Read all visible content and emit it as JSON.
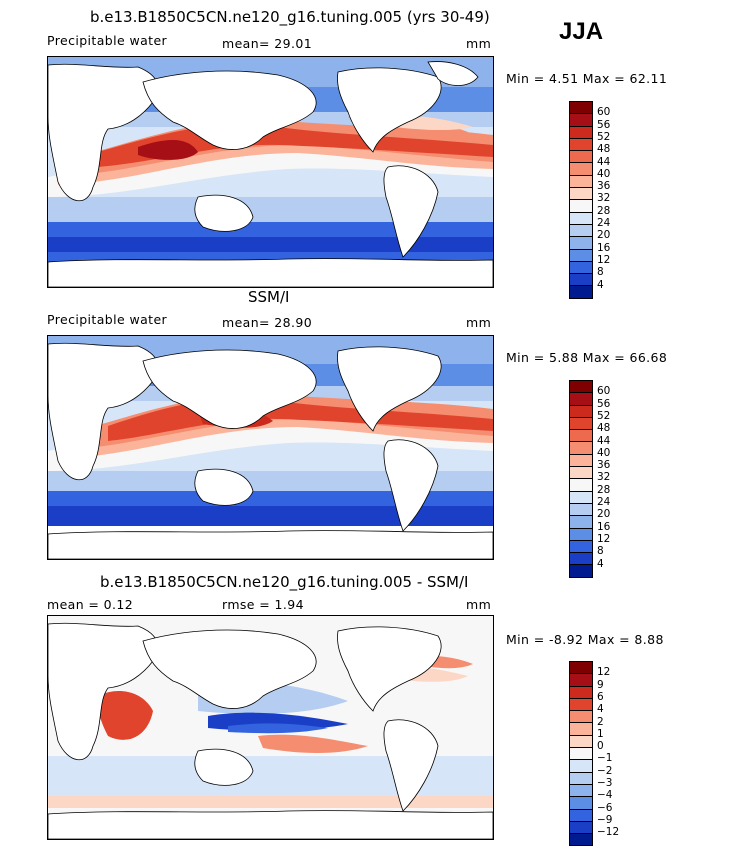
{
  "season": "JJA",
  "panels": [
    {
      "id": "model",
      "title": "b.e13.B1850C5CN.ne120_g16.tuning.005 (yrs 30-49)",
      "left_label": "Precipitable water",
      "center_label": "mean=  29.01",
      "units": "mm",
      "minmax": "Min =    4.51 Max =   62.11",
      "colorbar_labels": [
        "60",
        "56",
        "52",
        "48",
        "44",
        "40",
        "36",
        "32",
        "28",
        "24",
        "20",
        "16",
        "12",
        "8",
        "4"
      ]
    },
    {
      "id": "obs",
      "title": "SSM/I",
      "left_label": "Precipitable water",
      "center_label": "mean=  28.90",
      "units": "mm",
      "minmax": "Min =    5.88 Max =   66.68",
      "colorbar_labels": [
        "60",
        "56",
        "52",
        "48",
        "44",
        "40",
        "36",
        "32",
        "28",
        "24",
        "20",
        "16",
        "12",
        "8",
        "4"
      ]
    },
    {
      "id": "diff",
      "title": "b.e13.B1850C5CN.ne120_g16.tuning.005 - SSM/I",
      "left_label": "mean =    0.12",
      "center_label": "rmse =    1.94",
      "units": "mm",
      "minmax": "Min =  -8.92 Max =    8.88",
      "colorbar_labels": [
        "12",
        "9",
        "6",
        "4",
        "2",
        "1",
        "0",
        "−1",
        "−2",
        "−3",
        "−4",
        "−6",
        "−9",
        "−12"
      ]
    }
  ],
  "colors": {
    "abs_scale": [
      "#7f0000",
      "#a50f15",
      "#cb2a1c",
      "#e0442c",
      "#ee6a4f",
      "#f58d70",
      "#fbb49a",
      "#fdd7c6",
      "#f7f7f7",
      "#d6e5f7",
      "#b4cdf0",
      "#8db2ec",
      "#5d8ee6",
      "#3363de",
      "#1a3fc6",
      "#001a90"
    ],
    "diff_scale": [
      "#7f0000",
      "#a50f15",
      "#cb2a1c",
      "#e0442c",
      "#f58d70",
      "#fbb49a",
      "#fdd7c6",
      "#f7f7f7",
      "#d6e5f7",
      "#b4cdf0",
      "#8db2ec",
      "#5d8ee6",
      "#3363de",
      "#1a3fc6",
      "#001a90"
    ]
  }
}
